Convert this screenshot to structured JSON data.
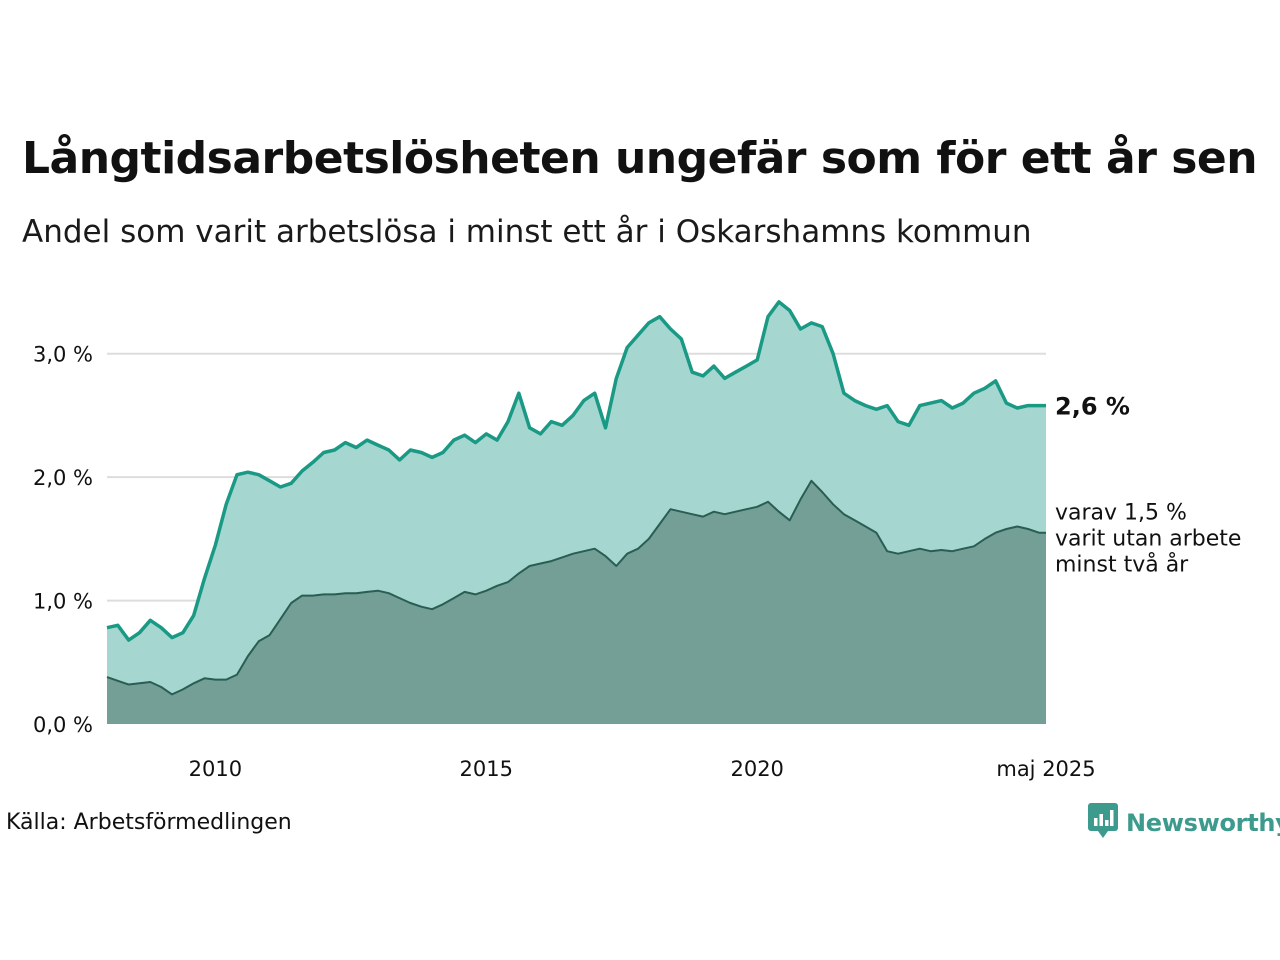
{
  "header": {
    "title": "Långtidsarbetslösheten ungefär som för ett år sen",
    "subtitle": "Andel som varit arbetslösa i minst ett år i Oskarshamns kommun"
  },
  "footer": {
    "source": "Källa: Arbetsförmedlingen",
    "brand": "Newsworthy",
    "brand_icon": "bar-chart-speech-bubble-icon"
  },
  "colors": {
    "series1_line": "#1a9985",
    "series1_fill": "#a5d7d0",
    "series2_line": "#2a5e53",
    "series2_fill": "#739f97",
    "grid": "#dddddd"
  },
  "chart_data": {
    "type": "area",
    "x_unit": "year (monthly data)",
    "ylim": [
      0,
      3.5
    ],
    "y_ticks": [
      0,
      1,
      2,
      3
    ],
    "y_tick_labels": [
      "0,0 %",
      "1,0 %",
      "2,0 %",
      "3,0 %"
    ],
    "x_ticks": [
      2010,
      2015,
      2020,
      2025.33
    ],
    "x_tick_labels": [
      "2010",
      "2015",
      "2020",
      "maj 2025"
    ],
    "xlim": [
      2008.0,
      2025.33
    ],
    "grid": "horizontal",
    "end_label": "2,6 %",
    "note_lines": [
      "varav 1,5 %",
      "varit utan arbete",
      "minst två år"
    ],
    "series": [
      {
        "key": "min-ett-ar",
        "x": [
          2008.0,
          2008.2,
          2008.4,
          2008.6,
          2008.8,
          2009.0,
          2009.2,
          2009.4,
          2009.6,
          2009.8,
          2010.0,
          2010.2,
          2010.4,
          2010.6,
          2010.8,
          2011.0,
          2011.2,
          2011.4,
          2011.6,
          2011.8,
          2012.0,
          2012.2,
          2012.4,
          2012.6,
          2012.8,
          2013.0,
          2013.2,
          2013.4,
          2013.6,
          2013.8,
          2014.0,
          2014.2,
          2014.4,
          2014.6,
          2014.8,
          2015.0,
          2015.2,
          2015.4,
          2015.6,
          2015.8,
          2016.0,
          2016.2,
          2016.4,
          2016.6,
          2016.8,
          2017.0,
          2017.2,
          2017.4,
          2017.6,
          2017.8,
          2018.0,
          2018.2,
          2018.4,
          2018.6,
          2018.8,
          2019.0,
          2019.2,
          2019.4,
          2019.6,
          2019.8,
          2020.0,
          2020.2,
          2020.4,
          2020.6,
          2020.8,
          2021.0,
          2021.2,
          2021.4,
          2021.6,
          2021.8,
          2022.0,
          2022.2,
          2022.4,
          2022.6,
          2022.8,
          2023.0,
          2023.2,
          2023.4,
          2023.6,
          2023.8,
          2024.0,
          2024.2,
          2024.4,
          2024.6,
          2024.8,
          2025.0,
          2025.2,
          2025.33
        ],
        "values": [
          0.78,
          0.8,
          0.68,
          0.74,
          0.84,
          0.78,
          0.7,
          0.74,
          0.88,
          1.18,
          1.45,
          1.78,
          2.02,
          2.04,
          2.02,
          1.97,
          1.92,
          1.95,
          2.05,
          2.12,
          2.2,
          2.22,
          2.28,
          2.24,
          2.3,
          2.26,
          2.22,
          2.14,
          2.22,
          2.2,
          2.16,
          2.2,
          2.3,
          2.34,
          2.28,
          2.35,
          2.3,
          2.45,
          2.68,
          2.4,
          2.35,
          2.45,
          2.42,
          2.5,
          2.62,
          2.68,
          2.4,
          2.8,
          3.05,
          3.15,
          3.25,
          3.3,
          3.2,
          3.12,
          2.85,
          2.82,
          2.9,
          2.8,
          2.85,
          2.9,
          2.95,
          3.3,
          3.42,
          3.35,
          3.2,
          3.25,
          3.22,
          3.0,
          2.68,
          2.62,
          2.58,
          2.55,
          2.58,
          2.45,
          2.42,
          2.58,
          2.6,
          2.62,
          2.56,
          2.6,
          2.68,
          2.72,
          2.78,
          2.6,
          2.56,
          2.58,
          2.58,
          2.58
        ]
      },
      {
        "key": "minst-tva-ar",
        "x": [
          2008.0,
          2008.2,
          2008.4,
          2008.6,
          2008.8,
          2009.0,
          2009.2,
          2009.4,
          2009.6,
          2009.8,
          2010.0,
          2010.2,
          2010.4,
          2010.6,
          2010.8,
          2011.0,
          2011.2,
          2011.4,
          2011.6,
          2011.8,
          2012.0,
          2012.2,
          2012.4,
          2012.6,
          2012.8,
          2013.0,
          2013.2,
          2013.4,
          2013.6,
          2013.8,
          2014.0,
          2014.2,
          2014.4,
          2014.6,
          2014.8,
          2015.0,
          2015.2,
          2015.4,
          2015.6,
          2015.8,
          2016.0,
          2016.2,
          2016.4,
          2016.6,
          2016.8,
          2017.0,
          2017.2,
          2017.4,
          2017.6,
          2017.8,
          2018.0,
          2018.2,
          2018.4,
          2018.6,
          2018.8,
          2019.0,
          2019.2,
          2019.4,
          2019.6,
          2019.8,
          2020.0,
          2020.2,
          2020.4,
          2020.6,
          2020.8,
          2021.0,
          2021.2,
          2021.4,
          2021.6,
          2021.8,
          2022.0,
          2022.2,
          2022.4,
          2022.6,
          2022.8,
          2023.0,
          2023.2,
          2023.4,
          2023.6,
          2023.8,
          2024.0,
          2024.2,
          2024.4,
          2024.6,
          2024.8,
          2025.0,
          2025.2,
          2025.33
        ],
        "values": [
          0.38,
          0.35,
          0.32,
          0.33,
          0.34,
          0.3,
          0.24,
          0.28,
          0.33,
          0.37,
          0.36,
          0.36,
          0.4,
          0.55,
          0.67,
          0.72,
          0.85,
          0.98,
          1.04,
          1.04,
          1.05,
          1.05,
          1.06,
          1.06,
          1.07,
          1.08,
          1.06,
          1.02,
          0.98,
          0.95,
          0.93,
          0.97,
          1.02,
          1.07,
          1.05,
          1.08,
          1.12,
          1.15,
          1.22,
          1.28,
          1.3,
          1.32,
          1.35,
          1.38,
          1.4,
          1.42,
          1.36,
          1.28,
          1.38,
          1.42,
          1.5,
          1.62,
          1.74,
          1.72,
          1.7,
          1.68,
          1.72,
          1.7,
          1.72,
          1.74,
          1.76,
          1.8,
          1.72,
          1.65,
          1.82,
          1.97,
          1.88,
          1.78,
          1.7,
          1.65,
          1.6,
          1.55,
          1.4,
          1.38,
          1.4,
          1.42,
          1.4,
          1.41,
          1.4,
          1.42,
          1.44,
          1.5,
          1.55,
          1.58,
          1.6,
          1.58,
          1.55,
          1.55
        ]
      }
    ]
  }
}
